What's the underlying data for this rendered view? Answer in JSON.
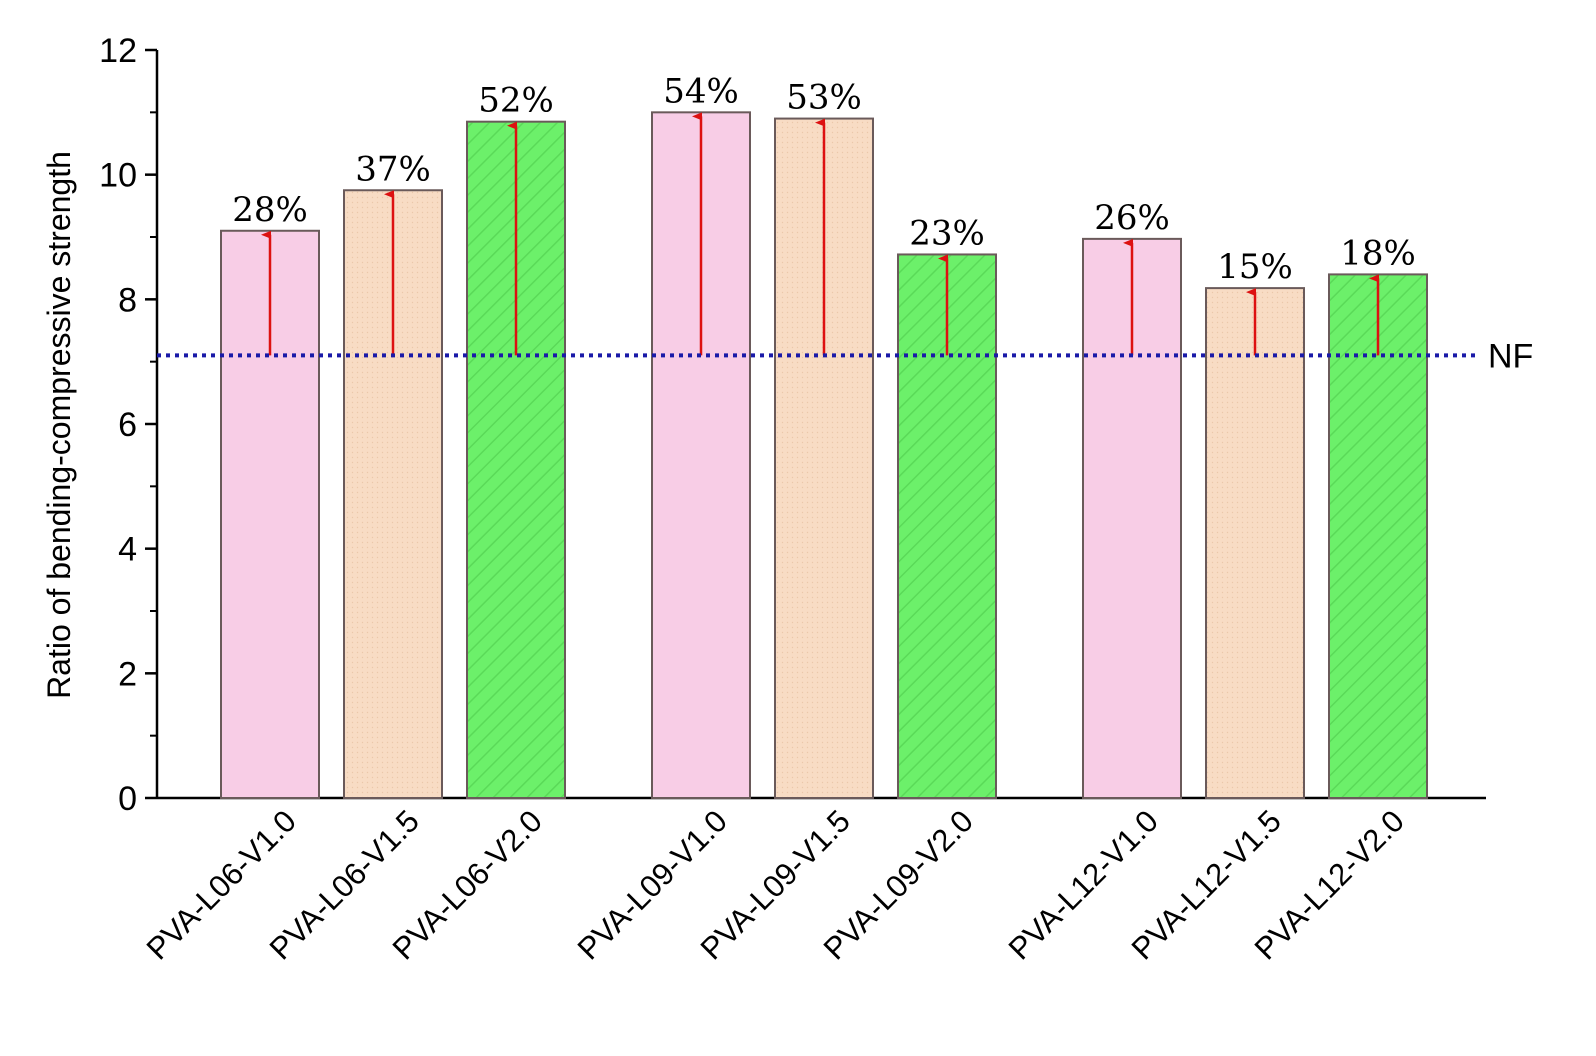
{
  "chart_data": {
    "type": "bar",
    "title": "",
    "xlabel": "",
    "ylabel": "Ratio of bending-compressive strength",
    "ylim": [
      0,
      12
    ],
    "yticks": [
      0,
      2,
      4,
      6,
      8,
      10,
      12
    ],
    "grid": false,
    "categories": [
      "PVA-L06-V1.0",
      "PVA-L06-V1.5",
      "PVA-L06-V2.0",
      "PVA-L09-V1.0",
      "PVA-L09-V1.5",
      "PVA-L09-V2.0",
      "PVA-L12-V1.0",
      "PVA-L12-V1.5",
      "PVA-L12-V2.0"
    ],
    "groups": [
      "L06",
      "L06",
      "L06",
      "L09",
      "L09",
      "L09",
      "L12",
      "L12",
      "L12"
    ],
    "values": [
      9.1,
      9.75,
      10.85,
      11.0,
      10.9,
      8.72,
      8.97,
      8.18,
      8.4
    ],
    "data_labels": [
      "28%",
      "37%",
      "52%",
      "54%",
      "53%",
      "23%",
      "26%",
      "15%",
      "18%"
    ],
    "fiber_volume": [
      "V1.0",
      "V1.5",
      "V2.0",
      "V1.0",
      "V1.5",
      "V2.0",
      "V1.0",
      "V1.5",
      "V2.0"
    ],
    "reference_line": {
      "label": "NF",
      "value": 7.1,
      "color": "#1a1aa8",
      "style": "dotted"
    },
    "colors": {
      "V1.0": "#f8cde6",
      "V1.5": "#f8dcc4",
      "V2.0": "#6cf06a",
      "arrow": "#dd1111",
      "bar_edge": "#6a5a5a"
    }
  }
}
